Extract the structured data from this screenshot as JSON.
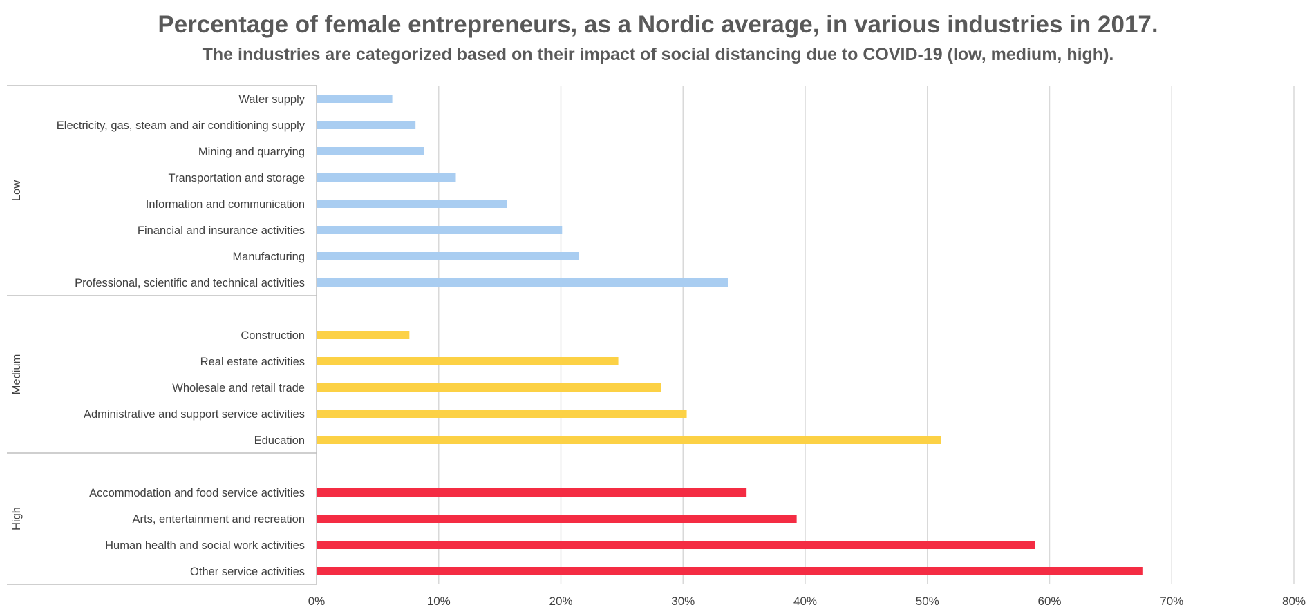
{
  "chart_data": {
    "type": "bar",
    "orientation": "horizontal",
    "title": "Percentage of female entrepreneurs, as a Nordic average, in various industries in 2017.",
    "subtitle": "The industries are categorized based on their impact of social distancing due to COVID-19 (low, medium, high).",
    "xlim": [
      0,
      80
    ],
    "x_ticks": [
      "0%",
      "10%",
      "20%",
      "30%",
      "40%",
      "50%",
      "60%",
      "70%",
      "80%"
    ],
    "grid": "vertical",
    "legend": "none",
    "groups": [
      {
        "name": "Low",
        "color": "#A9CDF1",
        "categories": [
          "Water supply",
          "Electricity,  gas, steam and air conditioning supply",
          "Mining and quarrying",
          "Transportation and storage",
          "Information and communication",
          "Financial and insurance activities",
          "Manufacturing",
          "Professional, scientific and technical activities"
        ],
        "values": [
          6.2,
          8.1,
          8.8,
          11.4,
          15.6,
          20.1,
          21.5,
          33.7
        ]
      },
      {
        "name": "Medium",
        "color": "#FCD145",
        "categories": [
          "Construction",
          "Real estate activities",
          "Wholesale and retail trade",
          "Administrative and support service activities",
          "Education"
        ],
        "values": [
          7.6,
          24.7,
          28.2,
          30.3,
          51.1
        ]
      },
      {
        "name": "High",
        "color": "#F42C43",
        "categories": [
          "Accommodation and food service activities",
          "Arts, entertainment and recreation",
          "Human health and social work activities",
          "Other service activities"
        ],
        "values": [
          35.2,
          39.3,
          58.8,
          67.6
        ]
      }
    ]
  }
}
